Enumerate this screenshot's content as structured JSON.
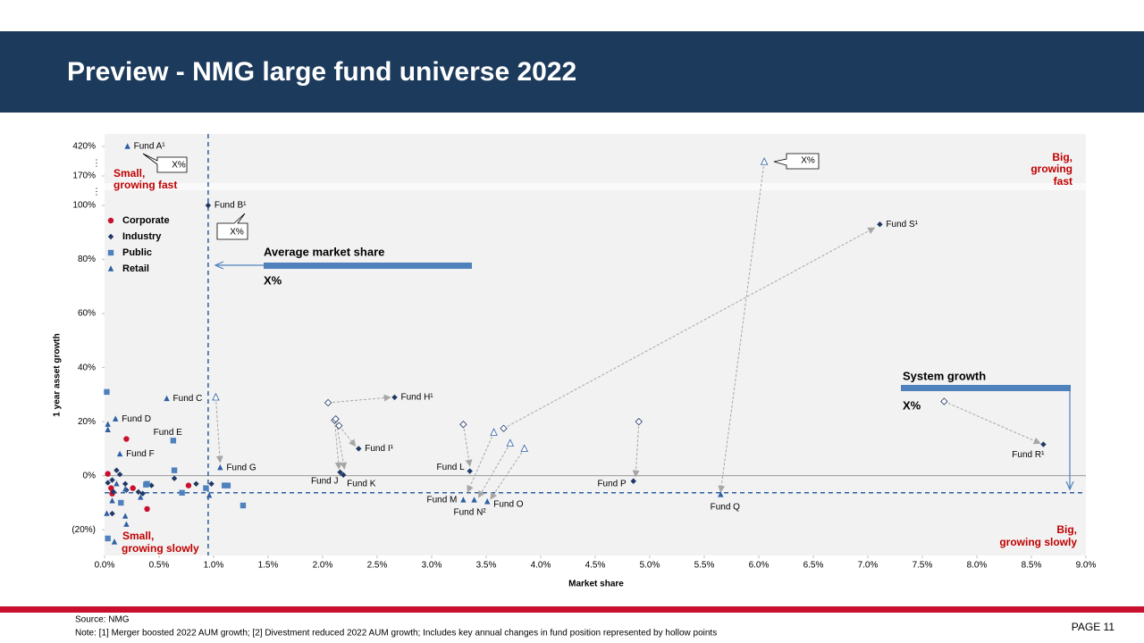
{
  "chart_data": {
    "type": "scatter",
    "title": "Preview - NMG large fund universe 2022",
    "x_label": "Market share",
    "y_label": "1 year asset growth",
    "xlim": [
      0,
      9
    ],
    "ylim": [
      -29.5,
      420
    ],
    "axis_break": 100,
    "xticks": [
      {
        "value": 0,
        "label": "0.0%"
      },
      {
        "value": 0.5,
        "label": "0.5%"
      },
      {
        "value": 1,
        "label": "1.0%"
      },
      {
        "value": 1.5,
        "label": "1.5%"
      },
      {
        "value": 2,
        "label": "2.0%"
      },
      {
        "value": 2.5,
        "label": "2.5%"
      },
      {
        "value": 3,
        "label": "3.0%"
      },
      {
        "value": 3.5,
        "label": "3.5%"
      },
      {
        "value": 4,
        "label": "4.0%"
      },
      {
        "value": 4.5,
        "label": "4.5%"
      },
      {
        "value": 5,
        "label": "5.0%"
      },
      {
        "value": 5.5,
        "label": "5.5%"
      },
      {
        "value": 6,
        "label": "6.0%"
      },
      {
        "value": 6.5,
        "label": "6.5%"
      },
      {
        "value": 7,
        "label": "7.0%"
      },
      {
        "value": 7.5,
        "label": "7.5%"
      },
      {
        "value": 8,
        "label": "8.0%"
      },
      {
        "value": 8.5,
        "label": "8.5%"
      },
      {
        "value": 9,
        "label": "9.0%"
      }
    ],
    "yticks": [
      {
        "value": -20,
        "label": "(20%)"
      },
      {
        "value": 0,
        "label": "0%"
      },
      {
        "value": 20,
        "label": "20%"
      },
      {
        "value": 40,
        "label": "40%"
      },
      {
        "value": 60,
        "label": "60%"
      },
      {
        "value": 80,
        "label": "80%"
      },
      {
        "value": 100,
        "label": "100%"
      },
      {
        "value": 170,
        "label": "170%"
      },
      {
        "value": 420,
        "label": "420%"
      }
    ],
    "legend": "upper left",
    "series": [
      {
        "name": "Corporate",
        "color": "#c8102e",
        "marker": "circle",
        "x": [
          0.2,
          0.03,
          0.06,
          0.26,
          0.39,
          0.77,
          0.07
        ],
        "values": [
          13.6,
          0.7,
          -4.6,
          -4.6,
          -12.3,
          -3.6,
          -6.6
        ]
      },
      {
        "name": "Industry",
        "color": "#1f3864",
        "marker": "diamond",
        "x": [
          0.95,
          2.66,
          2.33,
          2.16,
          2.19,
          3.35,
          4.85,
          8.61,
          7.11,
          0.03,
          0.07,
          0.11,
          0.08,
          0.19,
          0.31,
          0.43,
          0.84,
          0.98,
          0.64,
          0.07,
          0.2,
          0.35,
          0.14
        ],
        "values": [
          100,
          29,
          10,
          1.3,
          0.3,
          1.7,
          -2,
          11.6,
          93,
          -2.6,
          -1.6,
          2,
          -5.9,
          -3,
          -6,
          -3.6,
          -3,
          -3,
          -1,
          -14,
          -5.3,
          -6.6,
          0.5
        ],
        "labels": [
          "Fund B¹",
          "Fund H¹",
          "Fund I¹",
          "Fund J",
          "Fund K",
          "Fund L",
          "Fund P",
          "Fund R¹",
          "Fund S¹",
          null,
          null,
          null,
          null,
          null,
          null,
          null,
          null,
          null,
          null,
          null,
          null,
          null,
          null
        ]
      },
      {
        "name": "Public",
        "color": "#4f81bd",
        "marker": "square",
        "x": [
          0.63,
          0.02,
          0.64,
          0.39,
          0.71,
          0.93,
          1.1,
          1.13,
          1.27,
          0.15,
          0.03,
          0.38
        ],
        "values": [
          13,
          31,
          2,
          -3,
          -6.3,
          -4.6,
          -3.6,
          -3.6,
          -11,
          -10,
          -23.2,
          -3.3
        ],
        "labels": [
          "Fund E",
          null,
          null,
          null,
          null,
          null,
          null,
          null,
          null,
          null,
          null,
          null
        ]
      },
      {
        "name": "Retail",
        "color": "#2e5fa3",
        "marker": "triangle",
        "x": [
          0.21,
          0.57,
          0.1,
          0.14,
          1.06,
          3.29,
          3.39,
          3.51,
          5.65,
          0.03,
          0.03,
          0.02,
          0.09,
          0.19,
          0.2,
          0.11,
          0.07,
          0.33,
          0.96,
          0.19
        ],
        "values": [
          420,
          28.5,
          21,
          8,
          3,
          -9,
          -9,
          -9.6,
          -7,
          19,
          17,
          -14,
          -24.5,
          -15,
          -18,
          -3,
          -9.3,
          -8,
          -7.3,
          -5
        ],
        "labels": [
          "Fund A¹",
          "Fund C",
          "Fund D",
          "Fund F",
          "Fund G",
          "Fund M",
          "Fund N²",
          "Fund O",
          "Fund Q",
          null,
          null,
          null,
          null,
          null,
          null,
          null,
          null,
          null,
          null,
          null
        ]
      }
    ],
    "changes": [
      {
        "marker": "triangle",
        "x": 1.02,
        "y": 29,
        "to": [
          1.06,
          5
        ]
      },
      {
        "marker": "diamond",
        "x": 2.05,
        "y": 27,
        "to": [
          2.62,
          29
        ]
      },
      {
        "marker": "diamond",
        "x": 2.15,
        "y": 18.5,
        "to": [
          2.3,
          11
        ]
      },
      {
        "marker": "diamond",
        "x": 2.11,
        "y": 20.5,
        "to": [
          2.15,
          2.6
        ]
      },
      {
        "marker": "diamond",
        "x": 2.12,
        "y": 21,
        "to": [
          2.2,
          2.6
        ]
      },
      {
        "marker": "diamond",
        "x": 3.29,
        "y": 19,
        "to": [
          3.35,
          3.6
        ]
      },
      {
        "marker": "triangle",
        "x": 3.57,
        "y": 16,
        "to": [
          3.33,
          -6
        ]
      },
      {
        "marker": "triangle",
        "x": 3.72,
        "y": 12,
        "to": [
          3.43,
          -8
        ]
      },
      {
        "marker": "triangle",
        "x": 3.85,
        "y": 10,
        "to": [
          3.54,
          -8.6
        ]
      },
      {
        "marker": "diamond",
        "x": 3.66,
        "y": 17.5,
        "to": [
          7.06,
          91.7
        ]
      },
      {
        "marker": "diamond",
        "x": 4.9,
        "y": 20,
        "to": [
          4.87,
          -0.3
        ]
      },
      {
        "marker": "triangle",
        "x": 6.05,
        "y": 290,
        "to": [
          5.65,
          -6
        ]
      },
      {
        "marker": "diamond",
        "x": 7.7,
        "y": 27.5,
        "to": [
          8.58,
          12
        ]
      }
    ],
    "reference_lines": {
      "x": 0.95,
      "y": -6.3
    },
    "quadrants": {
      "top_left": [
        "Small,",
        "growing fast"
      ],
      "top_right": [
        "Big,",
        "growing",
        "fast"
      ],
      "bottom_left": [
        "Small,",
        "growing slowly"
      ],
      "bottom_right": [
        "Big,",
        "growing slowly"
      ]
    },
    "annotations": {
      "average_market_share": {
        "title": "Average market share",
        "value": "X%"
      },
      "system_growth": {
        "title": "System growth",
        "value": "X%"
      }
    },
    "callouts": [
      "X%",
      "X%",
      "X%"
    ]
  },
  "footer": {
    "source": "Source: NMG",
    "note": "Note: [1] Merger boosted 2022 AUM growth; [2] Divestment reduced 2022 AUM growth; Includes key annual changes in fund position represented by hollow points",
    "page": "PAGE 11"
  }
}
